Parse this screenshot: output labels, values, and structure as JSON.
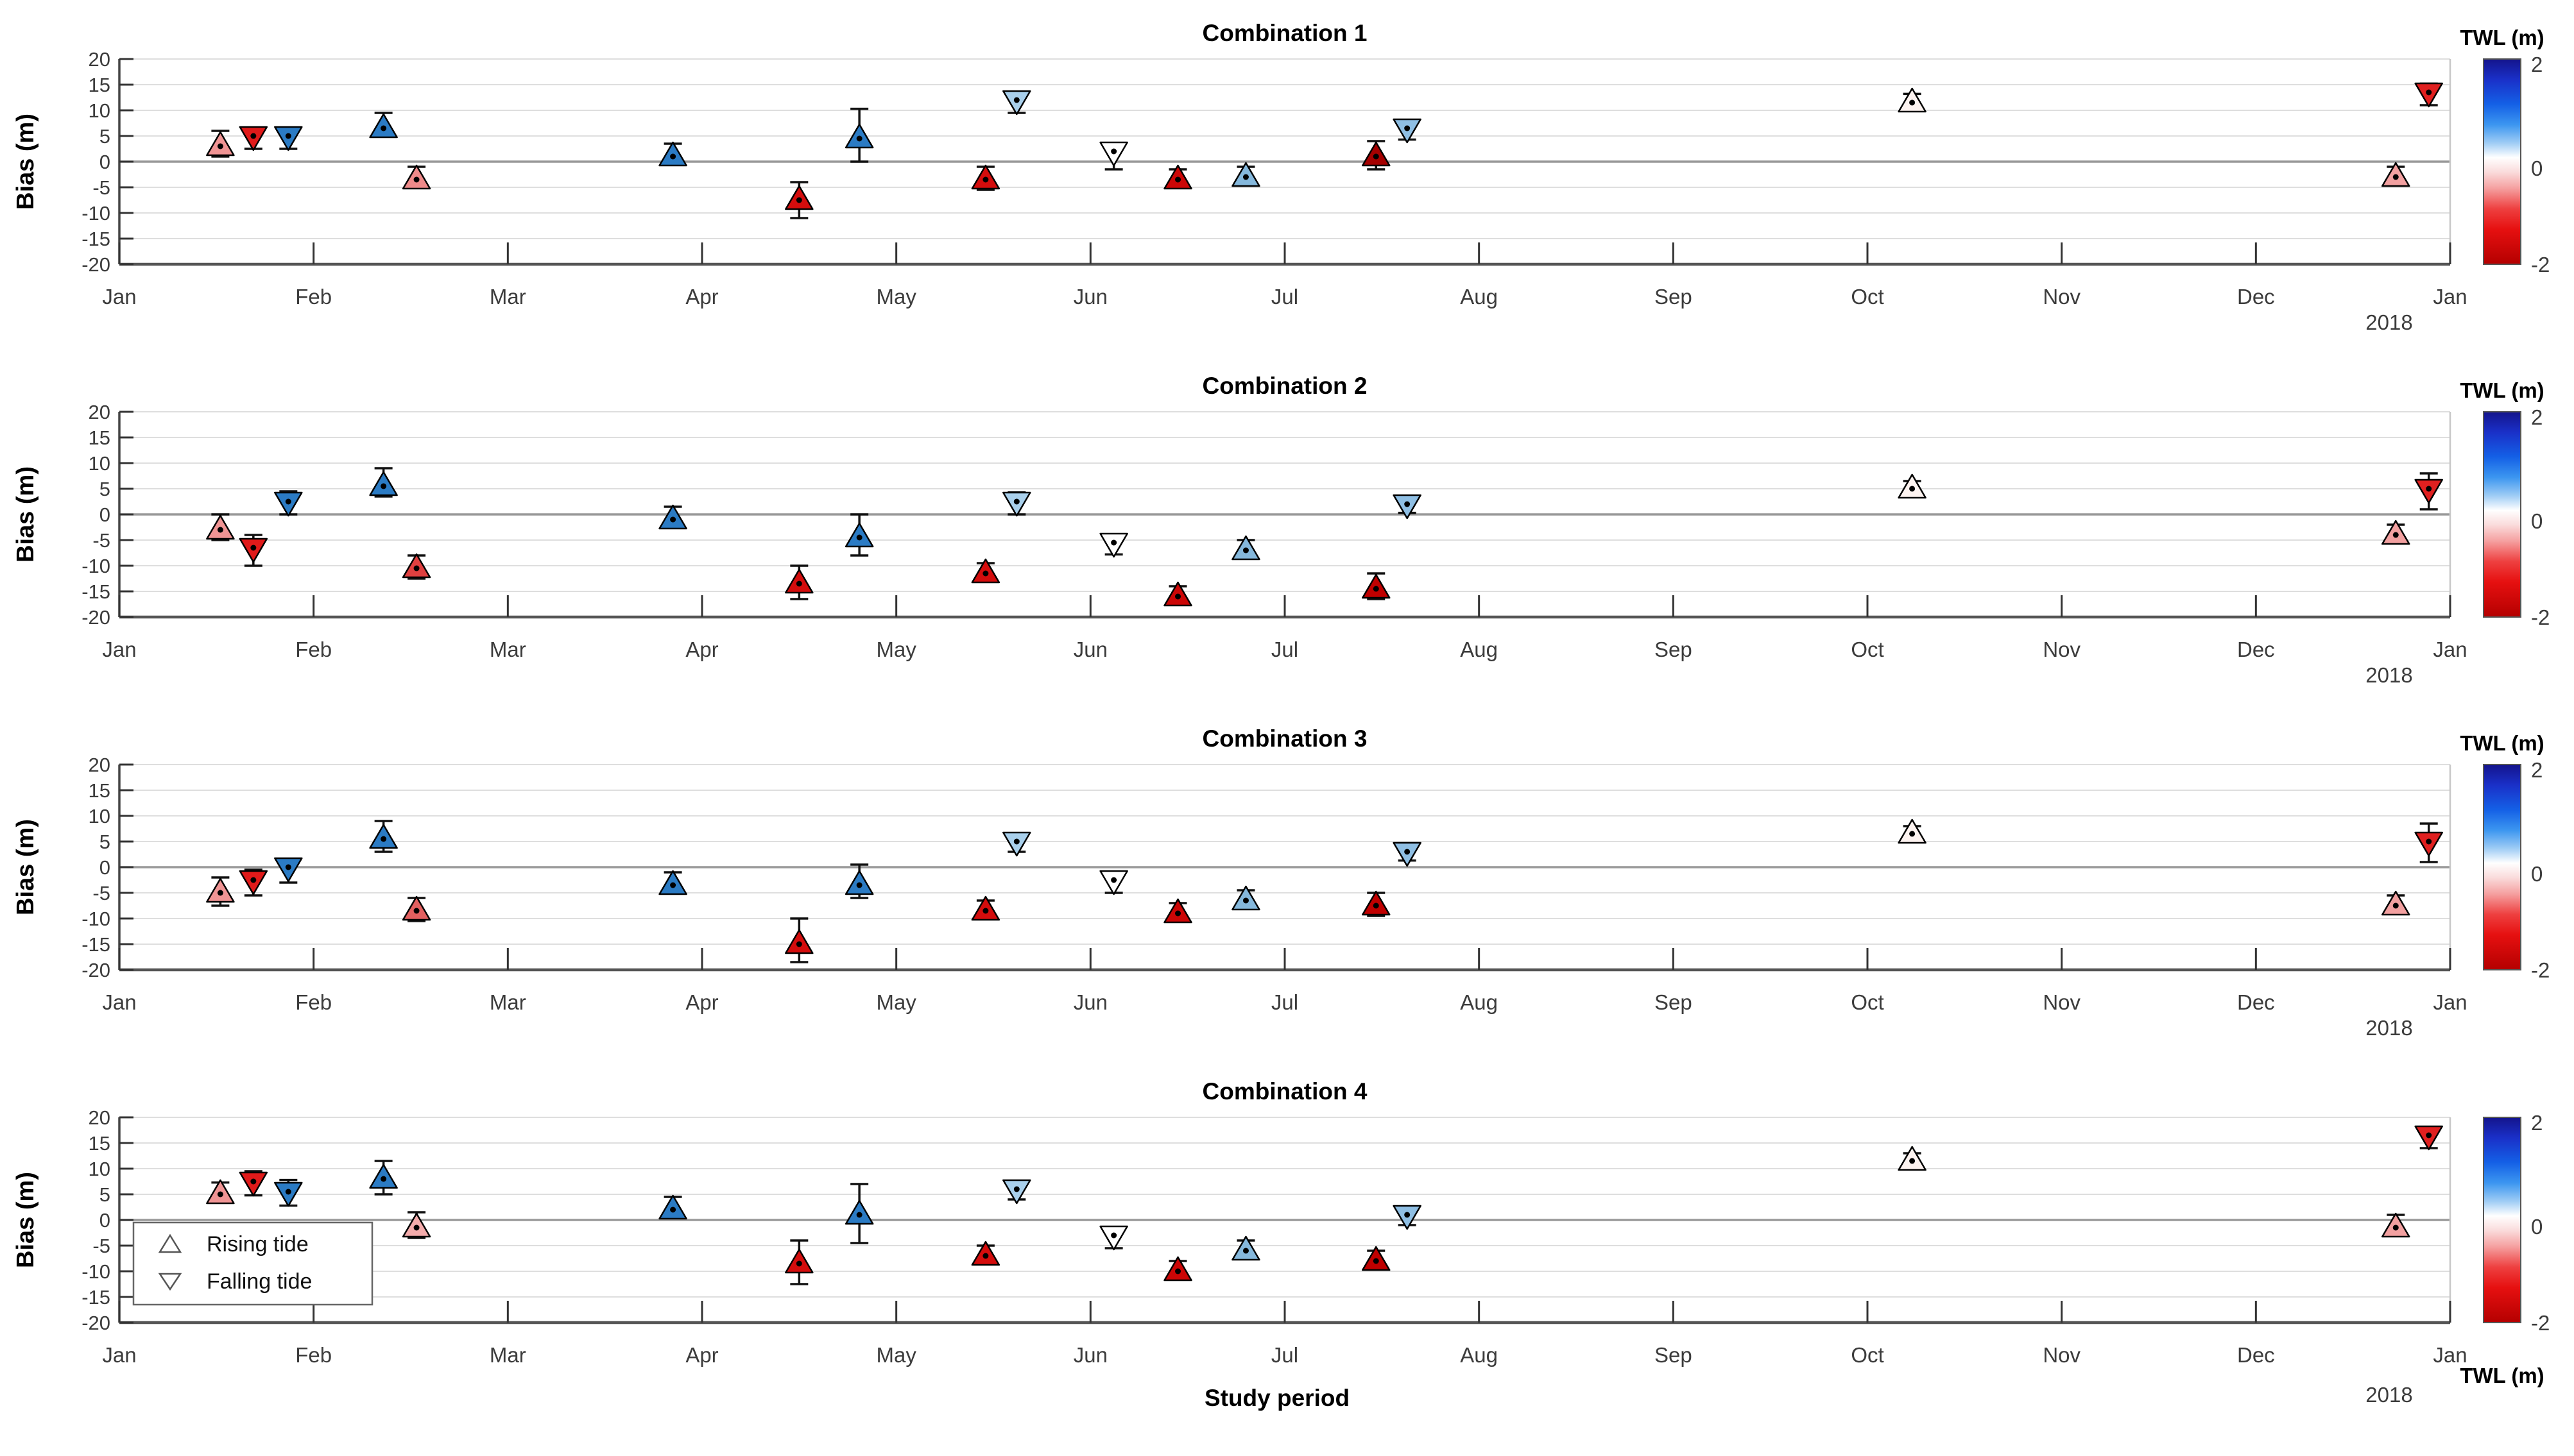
{
  "chart_data": {
    "type": "scatter",
    "figure_kind": "errorbar-time-series, 4 stacked panels",
    "xlabel": "Study period",
    "ylabel": "Bias (m)",
    "ylim": [
      -20,
      20
    ],
    "y_ticks": [
      "20",
      "15",
      "10",
      "5",
      "0",
      "-5",
      "-10",
      "-15",
      "-20"
    ],
    "y_tick_values": [
      20,
      15,
      10,
      5,
      0,
      -5,
      -10,
      -15,
      -20
    ],
    "grid": "horizontal gridlines every 5, zero line emphasized",
    "x_axis": {
      "tick_labels": [
        "Jan",
        "Feb",
        "Mar",
        "Apr",
        "May",
        "Jun",
        "Jul",
        "Aug",
        "Sep",
        "Oct",
        "Nov",
        "Dec",
        "Jan"
      ],
      "secondary_year_label": "2018"
    },
    "colorbar": {
      "title": "TWL (m)",
      "tick_labels": [
        "2",
        "0",
        "-2"
      ],
      "range": [
        -2,
        2
      ],
      "colors_top_to_bottom": [
        "#14148c",
        "#1a30c8",
        "#1460e6",
        "#3c96f0",
        "#a0cdf5",
        "#ffffff",
        "#fadcdc",
        "#f5a0a0",
        "#ee4040",
        "#e61010",
        "#b40000"
      ]
    },
    "legend": {
      "position": "lower-left of panel 4",
      "entries": [
        {
          "symbol": "triangle-up-open",
          "label": "Rising tide"
        },
        {
          "symbol": "triangle-down-open",
          "label": "Falling tide"
        }
      ]
    },
    "marker_encoding": "triangle direction = tide phase (up rising / down falling); fill color = TWL (m) on blue-white-red colorbar; vertical black error bars with caps; black center dot",
    "panels": [
      {
        "title": "Combination 1",
        "points": [
          {
            "x_month": 0.52,
            "tide": "rising",
            "bias": 3.5,
            "err_lo": 1.0,
            "err_hi": 6.0,
            "twl_fill": "#f09494"
          },
          {
            "x_month": 0.69,
            "tide": "falling",
            "bias": 4.5,
            "err_lo": 2.5,
            "err_hi": 6.5,
            "twl_fill": "#e01a1a"
          },
          {
            "x_month": 0.87,
            "tide": "falling",
            "bias": 4.5,
            "err_lo": 2.5,
            "err_hi": 6.5,
            "twl_fill": "#2b7bc4"
          },
          {
            "x_month": 1.36,
            "tide": "rising",
            "bias": 7.0,
            "err_lo": 5.0,
            "err_hi": 9.5,
            "twl_fill": "#2b7bc4"
          },
          {
            "x_month": 1.53,
            "tide": "rising",
            "bias": -3.0,
            "err_lo": -5.0,
            "err_hi": -1.0,
            "twl_fill": "#ef8a8a"
          },
          {
            "x_month": 2.85,
            "tide": "rising",
            "bias": 1.5,
            "err_lo": -0.5,
            "err_hi": 3.5,
            "twl_fill": "#2b7bc4"
          },
          {
            "x_month": 3.5,
            "tide": "rising",
            "bias": -7.0,
            "err_lo": -11.0,
            "err_hi": -4.0,
            "twl_fill": "#d40d0d"
          },
          {
            "x_month": 3.81,
            "tide": "rising",
            "bias": 5.0,
            "err_lo": 0.0,
            "err_hi": 10.3,
            "twl_fill": "#2b7bc4"
          },
          {
            "x_month": 4.46,
            "tide": "rising",
            "bias": -3.0,
            "err_lo": -5.5,
            "err_hi": -1.0,
            "twl_fill": "#d40d0d"
          },
          {
            "x_month": 4.62,
            "tide": "falling",
            "bias": 11.5,
            "err_lo": 9.5,
            "err_hi": 13.2,
            "twl_fill": "#a9d0ec"
          },
          {
            "x_month": 5.12,
            "tide": "falling",
            "bias": 1.5,
            "err_lo": -1.5,
            "err_hi": 3.2,
            "twl_fill": "#ffffff"
          },
          {
            "x_month": 5.45,
            "tide": "rising",
            "bias": -3.0,
            "err_lo": -4.8,
            "err_hi": -1.5,
            "twl_fill": "#cc0606"
          },
          {
            "x_month": 5.8,
            "tide": "rising",
            "bias": -2.5,
            "err_lo": -4.2,
            "err_hi": -1.0,
            "twl_fill": "#85b8dc"
          },
          {
            "x_month": 6.47,
            "tide": "rising",
            "bias": 1.5,
            "err_lo": -1.5,
            "err_hi": 4.0,
            "twl_fill": "#a50000"
          },
          {
            "x_month": 6.63,
            "tide": "falling",
            "bias": 6.0,
            "err_lo": 4.3,
            "err_hi": 7.5,
            "twl_fill": "#8fbfe4"
          },
          {
            "x_month": 9.23,
            "tide": "rising",
            "bias": 12.0,
            "err_lo": 11.0,
            "err_hi": 13.2,
            "twl_fill": "#fdf3f0"
          },
          {
            "x_month": 11.72,
            "tide": "rising",
            "bias": -2.5,
            "err_lo": -4.0,
            "err_hi": -1.0,
            "twl_fill": "#f2a0a0"
          },
          {
            "x_month": 11.89,
            "tide": "falling",
            "bias": 13.0,
            "err_lo": 11.0,
            "err_hi": 15.2,
            "twl_fill": "#e02020"
          }
        ]
      },
      {
        "title": "Combination 2",
        "points": [
          {
            "x_month": 0.52,
            "tide": "rising",
            "bias": -2.5,
            "err_lo": -5.0,
            "err_hi": 0.0,
            "twl_fill": "#f09494"
          },
          {
            "x_month": 0.69,
            "tide": "falling",
            "bias": -7.0,
            "err_lo": -10.0,
            "err_hi": -4.0,
            "twl_fill": "#e01a1a"
          },
          {
            "x_month": 0.87,
            "tide": "falling",
            "bias": 2.0,
            "err_lo": 0.0,
            "err_hi": 4.5,
            "twl_fill": "#2b7bc4"
          },
          {
            "x_month": 1.36,
            "tide": "rising",
            "bias": 6.0,
            "err_lo": 3.5,
            "err_hi": 9.0,
            "twl_fill": "#2b7bc4"
          },
          {
            "x_month": 1.53,
            "tide": "rising",
            "bias": -10.0,
            "err_lo": -12.5,
            "err_hi": -8.0,
            "twl_fill": "#e04040"
          },
          {
            "x_month": 2.85,
            "tide": "rising",
            "bias": -0.5,
            "err_lo": -2.5,
            "err_hi": 1.5,
            "twl_fill": "#2b7bc4"
          },
          {
            "x_month": 3.5,
            "tide": "rising",
            "bias": -13.0,
            "err_lo": -16.5,
            "err_hi": -10.0,
            "twl_fill": "#d40d0d"
          },
          {
            "x_month": 3.81,
            "tide": "rising",
            "bias": -4.0,
            "err_lo": -8.0,
            "err_hi": 0.0,
            "twl_fill": "#2b7bc4"
          },
          {
            "x_month": 4.46,
            "tide": "rising",
            "bias": -11.0,
            "err_lo": -13.0,
            "err_hi": -9.5,
            "twl_fill": "#d40d0d"
          },
          {
            "x_month": 4.62,
            "tide": "falling",
            "bias": 2.0,
            "err_lo": 0.0,
            "err_hi": 4.3,
            "twl_fill": "#a9d0ec"
          },
          {
            "x_month": 5.12,
            "tide": "falling",
            "bias": -6.0,
            "err_lo": -7.8,
            "err_hi": -4.5,
            "twl_fill": "#ffffff"
          },
          {
            "x_month": 5.45,
            "tide": "rising",
            "bias": -15.5,
            "err_lo": -17.5,
            "err_hi": -14.0,
            "twl_fill": "#cc0606"
          },
          {
            "x_month": 5.8,
            "tide": "rising",
            "bias": -6.5,
            "err_lo": -8.3,
            "err_hi": -5.0,
            "twl_fill": "#85b8dc"
          },
          {
            "x_month": 6.47,
            "tide": "rising",
            "bias": -14.0,
            "err_lo": -16.5,
            "err_hi": -11.5,
            "twl_fill": "#c00000"
          },
          {
            "x_month": 6.63,
            "tide": "falling",
            "bias": 1.5,
            "err_lo": 0.3,
            "err_hi": 3.0,
            "twl_fill": "#8fbfe4"
          },
          {
            "x_month": 9.23,
            "tide": "rising",
            "bias": 5.5,
            "err_lo": 4.8,
            "err_hi": 6.5,
            "twl_fill": "#fdf3f0"
          },
          {
            "x_month": 11.72,
            "tide": "rising",
            "bias": -3.5,
            "err_lo": -5.0,
            "err_hi": -2.0,
            "twl_fill": "#f2a0a0"
          },
          {
            "x_month": 11.89,
            "tide": "falling",
            "bias": 4.5,
            "err_lo": 1.0,
            "err_hi": 8.0,
            "twl_fill": "#e02020"
          }
        ]
      },
      {
        "title": "Combination 3",
        "points": [
          {
            "x_month": 0.52,
            "tide": "rising",
            "bias": -4.5,
            "err_lo": -7.5,
            "err_hi": -2.0,
            "twl_fill": "#f09494"
          },
          {
            "x_month": 0.69,
            "tide": "falling",
            "bias": -3.0,
            "err_lo": -5.5,
            "err_hi": -0.5,
            "twl_fill": "#e01a1a"
          },
          {
            "x_month": 0.87,
            "tide": "falling",
            "bias": -0.5,
            "err_lo": -3.0,
            "err_hi": 1.5,
            "twl_fill": "#2b7bc4"
          },
          {
            "x_month": 1.36,
            "tide": "rising",
            "bias": 6.0,
            "err_lo": 3.0,
            "err_hi": 9.0,
            "twl_fill": "#2b7bc4"
          },
          {
            "x_month": 1.53,
            "tide": "rising",
            "bias": -8.0,
            "err_lo": -10.5,
            "err_hi": -6.0,
            "twl_fill": "#e36060"
          },
          {
            "x_month": 2.85,
            "tide": "rising",
            "bias": -3.0,
            "err_lo": -4.5,
            "err_hi": -1.0,
            "twl_fill": "#2b7bc4"
          },
          {
            "x_month": 3.5,
            "tide": "rising",
            "bias": -14.5,
            "err_lo": -18.5,
            "err_hi": -10.0,
            "twl_fill": "#d40d0d"
          },
          {
            "x_month": 3.81,
            "tide": "rising",
            "bias": -3.0,
            "err_lo": -6.0,
            "err_hi": 0.5,
            "twl_fill": "#2b7bc4"
          },
          {
            "x_month": 4.46,
            "tide": "rising",
            "bias": -8.0,
            "err_lo": -9.5,
            "err_hi": -6.5,
            "twl_fill": "#d40d0d"
          },
          {
            "x_month": 4.62,
            "tide": "falling",
            "bias": 4.5,
            "err_lo": 3.0,
            "err_hi": 6.3,
            "twl_fill": "#a9d0ec"
          },
          {
            "x_month": 5.12,
            "tide": "falling",
            "bias": -3.0,
            "err_lo": -5.0,
            "err_hi": -1.5,
            "twl_fill": "#ffffff"
          },
          {
            "x_month": 5.45,
            "tide": "rising",
            "bias": -8.5,
            "err_lo": -10.0,
            "err_hi": -7.0,
            "twl_fill": "#cc0606"
          },
          {
            "x_month": 5.8,
            "tide": "rising",
            "bias": -6.0,
            "err_lo": -7.8,
            "err_hi": -4.5,
            "twl_fill": "#85b8dc"
          },
          {
            "x_month": 6.47,
            "tide": "rising",
            "bias": -7.0,
            "err_lo": -9.5,
            "err_hi": -5.0,
            "twl_fill": "#c00000"
          },
          {
            "x_month": 6.63,
            "tide": "falling",
            "bias": 2.5,
            "err_lo": 1.3,
            "err_hi": 4.0,
            "twl_fill": "#8fbfe4"
          },
          {
            "x_month": 9.23,
            "tide": "rising",
            "bias": 7.0,
            "err_lo": 6.2,
            "err_hi": 8.0,
            "twl_fill": "#fdf3f0"
          },
          {
            "x_month": 11.72,
            "tide": "rising",
            "bias": -7.0,
            "err_lo": -8.5,
            "err_hi": -5.5,
            "twl_fill": "#f2a0a0"
          },
          {
            "x_month": 11.89,
            "tide": "falling",
            "bias": 4.5,
            "err_lo": 1.0,
            "err_hi": 8.5,
            "twl_fill": "#e02020"
          }
        ]
      },
      {
        "title": "Combination 4",
        "points": [
          {
            "x_month": 0.52,
            "tide": "rising",
            "bias": 5.5,
            "err_lo": 3.5,
            "err_hi": 7.3,
            "twl_fill": "#f09494"
          },
          {
            "x_month": 0.69,
            "tide": "falling",
            "bias": 7.0,
            "err_lo": 4.8,
            "err_hi": 9.5,
            "twl_fill": "#e01a1a"
          },
          {
            "x_month": 0.87,
            "tide": "falling",
            "bias": 5.0,
            "err_lo": 2.8,
            "err_hi": 7.8,
            "twl_fill": "#2b7bc4"
          },
          {
            "x_month": 1.36,
            "tide": "rising",
            "bias": 8.5,
            "err_lo": 5.0,
            "err_hi": 11.5,
            "twl_fill": "#2b7bc4"
          },
          {
            "x_month": 1.53,
            "tide": "rising",
            "bias": -1.0,
            "err_lo": -3.5,
            "err_hi": 1.5,
            "twl_fill": "#f4acac"
          },
          {
            "x_month": 2.85,
            "tide": "rising",
            "bias": 2.5,
            "err_lo": 1.0,
            "err_hi": 4.5,
            "twl_fill": "#2b7bc4"
          },
          {
            "x_month": 3.5,
            "tide": "rising",
            "bias": -8.0,
            "err_lo": -12.5,
            "err_hi": -4.0,
            "twl_fill": "#d40d0d"
          },
          {
            "x_month": 3.81,
            "tide": "rising",
            "bias": 1.5,
            "err_lo": -4.5,
            "err_hi": 7.0,
            "twl_fill": "#2b7bc4"
          },
          {
            "x_month": 4.46,
            "tide": "rising",
            "bias": -6.5,
            "err_lo": -8.5,
            "err_hi": -5.0,
            "twl_fill": "#d40d0d"
          },
          {
            "x_month": 4.62,
            "tide": "falling",
            "bias": 5.5,
            "err_lo": 4.0,
            "err_hi": 7.5,
            "twl_fill": "#a9d0ec"
          },
          {
            "x_month": 5.12,
            "tide": "falling",
            "bias": -3.5,
            "err_lo": -5.5,
            "err_hi": -2.0,
            "twl_fill": "#ffffff"
          },
          {
            "x_month": 5.45,
            "tide": "rising",
            "bias": -9.5,
            "err_lo": -11.5,
            "err_hi": -8.0,
            "twl_fill": "#cc0606"
          },
          {
            "x_month": 5.8,
            "tide": "rising",
            "bias": -5.5,
            "err_lo": -7.5,
            "err_hi": -4.0,
            "twl_fill": "#85b8dc"
          },
          {
            "x_month": 6.47,
            "tide": "rising",
            "bias": -7.5,
            "err_lo": -9.5,
            "err_hi": -6.0,
            "twl_fill": "#c00000"
          },
          {
            "x_month": 6.63,
            "tide": "falling",
            "bias": 0.5,
            "err_lo": -1.0,
            "err_hi": 2.0,
            "twl_fill": "#8fbfe4"
          },
          {
            "x_month": 9.23,
            "tide": "rising",
            "bias": 12.0,
            "err_lo": 11.0,
            "err_hi": 13.0,
            "twl_fill": "#fdf3f0"
          },
          {
            "x_month": 11.72,
            "tide": "rising",
            "bias": -1.0,
            "err_lo": -3.0,
            "err_hi": 1.0,
            "twl_fill": "#f2a0a0"
          },
          {
            "x_month": 11.89,
            "tide": "falling",
            "bias": 16.0,
            "err_lo": 14.0,
            "err_hi": 18.0,
            "twl_fill": "#e02020"
          }
        ]
      }
    ]
  }
}
